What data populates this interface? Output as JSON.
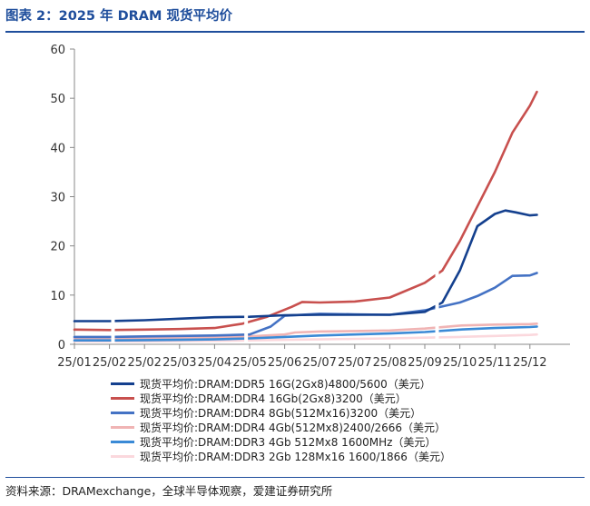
{
  "title": "图表 2：2025 年 DRAM 现货平均价",
  "source": "资料来源：DRAMexchange，全球半导体观察，爱建证券研究所",
  "chart_data": {
    "type": "line",
    "title": "图表 2：2025 年 DRAM 现货平均价",
    "xlabel": "",
    "ylabel": "",
    "ylim": [
      0,
      60
    ],
    "yticks": [
      "0",
      "10",
      "20",
      "30",
      "40",
      "50",
      "60"
    ],
    "grid": false,
    "legend_position": "bottom",
    "categories": [
      "25/01",
      "25/02",
      "25/02",
      "25/03",
      "25/04",
      "25/05",
      "25/06",
      "25/07",
      "25/07",
      "25/08",
      "25/09",
      "25/10",
      "25/11",
      "25/12"
    ],
    "series": [
      {
        "name": "现货平均价:DRAM:DDR5 16G(2Gx8)4800/5600（美元）",
        "color": "#14408e",
        "points": [
          [
            0,
            4.7
          ],
          [
            1,
            4.7
          ],
          [
            2,
            4.9
          ],
          [
            3,
            5.2
          ],
          [
            4,
            5.5
          ],
          [
            5,
            5.6
          ],
          [
            6,
            5.9
          ],
          [
            7,
            6.0
          ],
          [
            8,
            6.0
          ],
          [
            9,
            6.0
          ],
          [
            10,
            6.6
          ],
          [
            10.5,
            8.5
          ],
          [
            11,
            15.0
          ],
          [
            11.5,
            24.0
          ],
          [
            12,
            26.5
          ],
          [
            12.3,
            27.2
          ],
          [
            12.6,
            26.8
          ],
          [
            13,
            26.2
          ],
          [
            13.2,
            26.3
          ]
        ]
      },
      {
        "name": "现货平均价:DRAM:DDR4 16Gb(2Gx8)3200（美元）",
        "color": "#c8504e",
        "points": [
          [
            0,
            3.0
          ],
          [
            1,
            2.9
          ],
          [
            2,
            3.0
          ],
          [
            3,
            3.1
          ],
          [
            4,
            3.3
          ],
          [
            4.8,
            4.2
          ],
          [
            5.5,
            5.6
          ],
          [
            6.2,
            7.6
          ],
          [
            6.5,
            8.6
          ],
          [
            7,
            8.5
          ],
          [
            8,
            8.7
          ],
          [
            9,
            9.5
          ],
          [
            10,
            12.5
          ],
          [
            10.5,
            15.0
          ],
          [
            11,
            21.0
          ],
          [
            11.5,
            28.0
          ],
          [
            12,
            35.0
          ],
          [
            12.5,
            43.0
          ],
          [
            13,
            48.5
          ],
          [
            13.2,
            51.3
          ]
        ]
      },
      {
        "name": "现货平均价:DRAM:DDR4 8Gb(512Mx16)3200（美元）",
        "color": "#4472c4",
        "points": [
          [
            0,
            1.5
          ],
          [
            1,
            1.5
          ],
          [
            2,
            1.6
          ],
          [
            3,
            1.7
          ],
          [
            4,
            1.8
          ],
          [
            5,
            2.0
          ],
          [
            5.6,
            3.6
          ],
          [
            6,
            5.8
          ],
          [
            7,
            6.2
          ],
          [
            8,
            6.1
          ],
          [
            9,
            6.0
          ],
          [
            10,
            6.9
          ],
          [
            11,
            8.5
          ],
          [
            11.5,
            9.8
          ],
          [
            12,
            11.5
          ],
          [
            12.5,
            13.9
          ],
          [
            13,
            14.0
          ],
          [
            13.2,
            14.5
          ]
        ]
      },
      {
        "name": "现货平均价:DRAM:DDR4 4Gb(512Mx8)2400/2666（美元）",
        "color": "#f0b4b4",
        "points": [
          [
            0,
            1.2
          ],
          [
            1,
            1.2
          ],
          [
            2,
            1.2
          ],
          [
            3,
            1.3
          ],
          [
            4,
            1.4
          ],
          [
            5,
            1.6
          ],
          [
            6,
            2.0
          ],
          [
            6.3,
            2.4
          ],
          [
            7,
            2.6
          ],
          [
            8,
            2.7
          ],
          [
            9,
            2.8
          ],
          [
            10,
            3.2
          ],
          [
            11,
            3.8
          ],
          [
            12,
            4.0
          ],
          [
            13,
            4.1
          ],
          [
            13.2,
            4.2
          ]
        ]
      },
      {
        "name": "现货平均价:DRAM:DDR3 4Gb 512Mx8 1600MHz（美元）",
        "color": "#3a8ad6",
        "points": [
          [
            0,
            0.8
          ],
          [
            1,
            0.8
          ],
          [
            2,
            0.85
          ],
          [
            3,
            0.9
          ],
          [
            4,
            1.0
          ],
          [
            5,
            1.2
          ],
          [
            6,
            1.5
          ],
          [
            7,
            1.8
          ],
          [
            8,
            2.0
          ],
          [
            9,
            2.2
          ],
          [
            10,
            2.5
          ],
          [
            11,
            3.0
          ],
          [
            12,
            3.3
          ],
          [
            13,
            3.5
          ],
          [
            13.2,
            3.6
          ]
        ]
      },
      {
        "name": "现货平均价:DRAM:DDR3 2Gb 128Mx16 1600/1866（美元）",
        "color": "#fbd8dd",
        "points": [
          [
            0,
            0.6
          ],
          [
            1,
            0.6
          ],
          [
            2,
            0.6
          ],
          [
            3,
            0.65
          ],
          [
            4,
            0.7
          ],
          [
            5,
            0.8
          ],
          [
            6,
            0.9
          ],
          [
            7,
            1.0
          ],
          [
            8,
            1.1
          ],
          [
            9,
            1.2
          ],
          [
            10,
            1.35
          ],
          [
            11,
            1.5
          ],
          [
            12,
            1.7
          ],
          [
            13,
            1.9
          ],
          [
            13.2,
            2.0
          ]
        ]
      }
    ]
  }
}
